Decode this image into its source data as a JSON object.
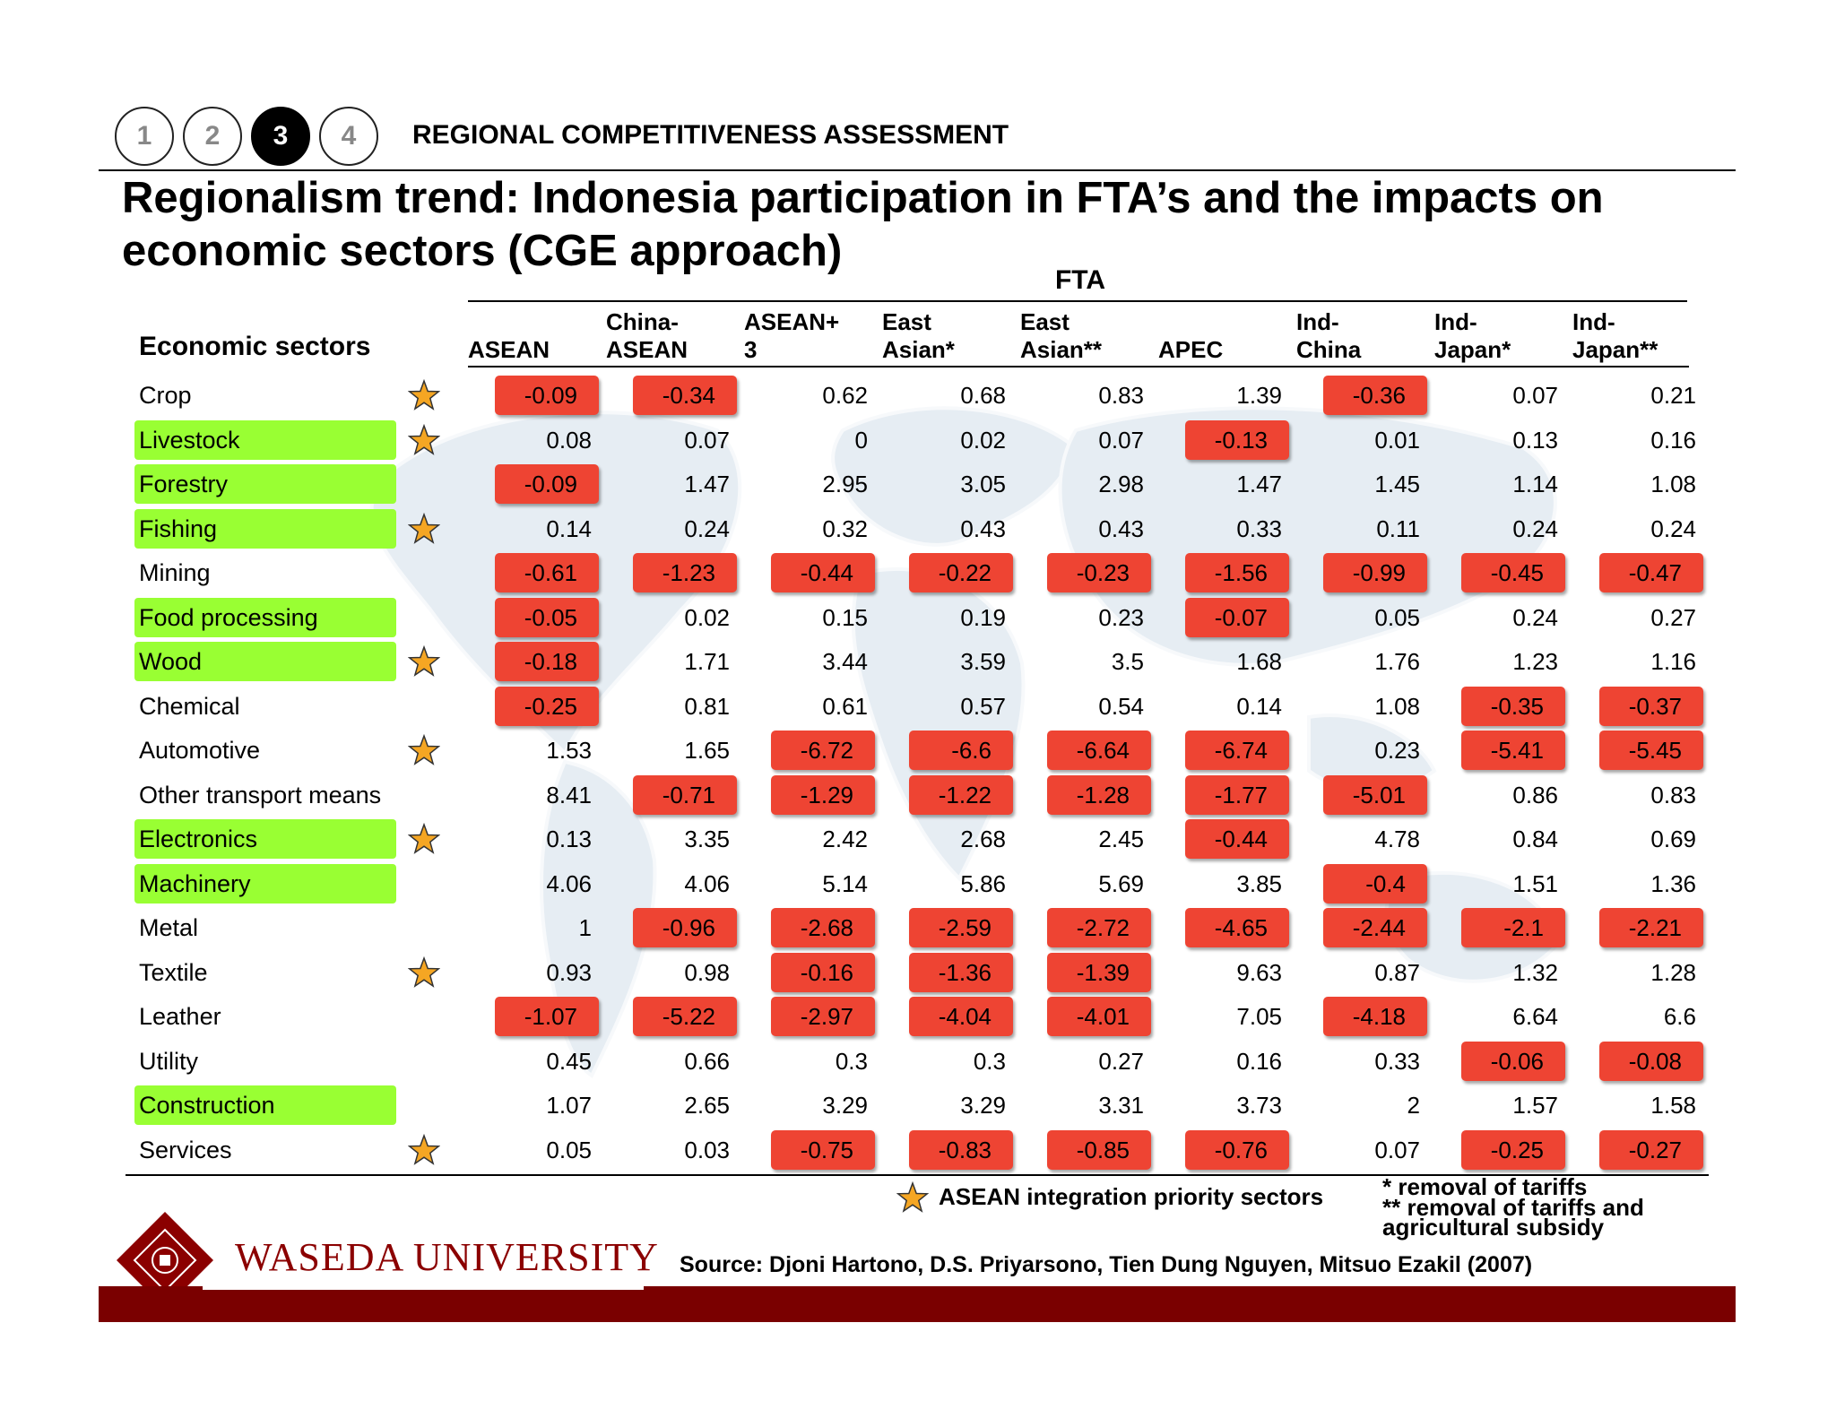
{
  "steps": [
    "1",
    "2",
    "3",
    "4"
  ],
  "section_title": "REGIONAL COMPETITIVENESS ASSESSMENT",
  "page_title": "Regionalism trend: Indonesia participation in FTA’s and the impacts on economic sectors (CGE approach)",
  "table": {
    "fta_label": "FTA",
    "row_header": "Economic sectors",
    "columns": [
      "ASEAN",
      "China-\nASEAN",
      "ASEAN+\n3",
      "East\nAsian*",
      "East\nAsian**",
      "APEC",
      "Ind-\nChina",
      "Ind-\nJapan*",
      "Ind-\nJapan**"
    ],
    "rows": [
      {
        "sector": "Crop",
        "priority_sector": false,
        "star": true,
        "values": [
          "-0.09",
          "-0.34",
          "0.62",
          "0.68",
          "0.83",
          "1.39",
          "-0.36",
          "0.07",
          "0.21"
        ]
      },
      {
        "sector": "Livestock",
        "priority_sector": true,
        "star": true,
        "values": [
          "0.08",
          "0.07",
          "0",
          "0.02",
          "0.07",
          "-0.13",
          "0.01",
          "0.13",
          "0.16"
        ]
      },
      {
        "sector": "Forestry",
        "priority_sector": true,
        "star": false,
        "values": [
          "-0.09",
          "1.47",
          "2.95",
          "3.05",
          "2.98",
          "1.47",
          "1.45",
          "1.14",
          "1.08"
        ]
      },
      {
        "sector": "Fishing",
        "priority_sector": true,
        "star": true,
        "values": [
          "0.14",
          "0.24",
          "0.32",
          "0.43",
          "0.43",
          "0.33",
          "0.11",
          "0.24",
          "0.24"
        ]
      },
      {
        "sector": "Mining",
        "priority_sector": false,
        "star": false,
        "values": [
          "-0.61",
          "-1.23",
          "-0.44",
          "-0.22",
          "-0.23",
          "-1.56",
          "-0.99",
          "-0.45",
          "-0.47"
        ]
      },
      {
        "sector": "Food processing",
        "priority_sector": true,
        "star": false,
        "values": [
          "-0.05",
          "0.02",
          "0.15",
          "0.19",
          "0.23",
          "-0.07",
          "0.05",
          "0.24",
          "0.27"
        ]
      },
      {
        "sector": "Wood",
        "priority_sector": true,
        "star": true,
        "values": [
          "-0.18",
          "1.71",
          "3.44",
          "3.59",
          "3.5",
          "1.68",
          "1.76",
          "1.23",
          "1.16"
        ]
      },
      {
        "sector": "Chemical",
        "priority_sector": false,
        "star": false,
        "values": [
          "-0.25",
          "0.81",
          "0.61",
          "0.57",
          "0.54",
          "0.14",
          "1.08",
          "-0.35",
          "-0.37"
        ]
      },
      {
        "sector": "Automotive",
        "priority_sector": false,
        "star": true,
        "values": [
          "1.53",
          "1.65",
          "-6.72",
          "-6.6",
          "-6.64",
          "-6.74",
          "0.23",
          "-5.41",
          "-5.45"
        ]
      },
      {
        "sector": "Other transport means",
        "priority_sector": false,
        "star": false,
        "values": [
          "8.41",
          "-0.71",
          "-1.29",
          "-1.22",
          "-1.28",
          "-1.77",
          "-5.01",
          "0.86",
          "0.83"
        ]
      },
      {
        "sector": "Electronics",
        "priority_sector": true,
        "star": true,
        "values": [
          "0.13",
          "3.35",
          "2.42",
          "2.68",
          "2.45",
          "-0.44",
          "4.78",
          "0.84",
          "0.69"
        ]
      },
      {
        "sector": "Machinery",
        "priority_sector": true,
        "star": false,
        "values": [
          "4.06",
          "4.06",
          "5.14",
          "5.86",
          "5.69",
          "3.85",
          "-0.4",
          "1.51",
          "1.36"
        ]
      },
      {
        "sector": "Metal",
        "priority_sector": false,
        "star": false,
        "values": [
          "1",
          "-0.96",
          "-2.68",
          "-2.59",
          "-2.72",
          "-4.65",
          "-2.44",
          "-2.1",
          "-2.21"
        ]
      },
      {
        "sector": "Textile",
        "priority_sector": false,
        "star": true,
        "values": [
          "0.93",
          "0.98",
          "-0.16",
          "-1.36",
          "-1.39",
          "9.63",
          "0.87",
          "1.32",
          "1.28"
        ]
      },
      {
        "sector": "Leather",
        "priority_sector": false,
        "star": false,
        "values": [
          "-1.07",
          "-5.22",
          "-2.97",
          "-4.04",
          "-4.01",
          "7.05",
          "-4.18",
          "6.64",
          "6.6"
        ]
      },
      {
        "sector": "Utility",
        "priority_sector": false,
        "star": false,
        "values": [
          "0.45",
          "0.66",
          "0.3",
          "0.3",
          "0.27",
          "0.16",
          "0.33",
          "-0.06",
          "-0.08"
        ]
      },
      {
        "sector": "Construction",
        "priority_sector": true,
        "star": false,
        "values": [
          "1.07",
          "2.65",
          "3.29",
          "3.29",
          "3.31",
          "3.73",
          "2",
          "1.57",
          "1.58"
        ]
      },
      {
        "sector": "Services",
        "priority_sector": false,
        "star": true,
        "values": [
          "0.05",
          "0.03",
          "-0.75",
          "-0.83",
          "-0.85",
          "-0.76",
          "0.07",
          "-0.25",
          "-0.27"
        ]
      }
    ]
  },
  "legend": {
    "star_label": "ASEAN integration  priority sectors",
    "note_1": "*  removal of tariffs",
    "note_2": "** removal of tariffs and\n    agricultural subsidy"
  },
  "footer": {
    "university": "WASEDA UNIVERSITY",
    "source": "Source: Djoni Hartono, D.S. Priyarsono, Tien Dung Nguyen, Mitsuo Ezakil (2007)"
  },
  "colors": {
    "negative_cell": "#ee4433",
    "priority_sector": "#99ff33",
    "star_fill": "#f5a623",
    "brand": "#7a0000"
  },
  "icons": {
    "star": "star-icon",
    "logo": "waseda-crest-icon",
    "map": "world-map-background"
  }
}
